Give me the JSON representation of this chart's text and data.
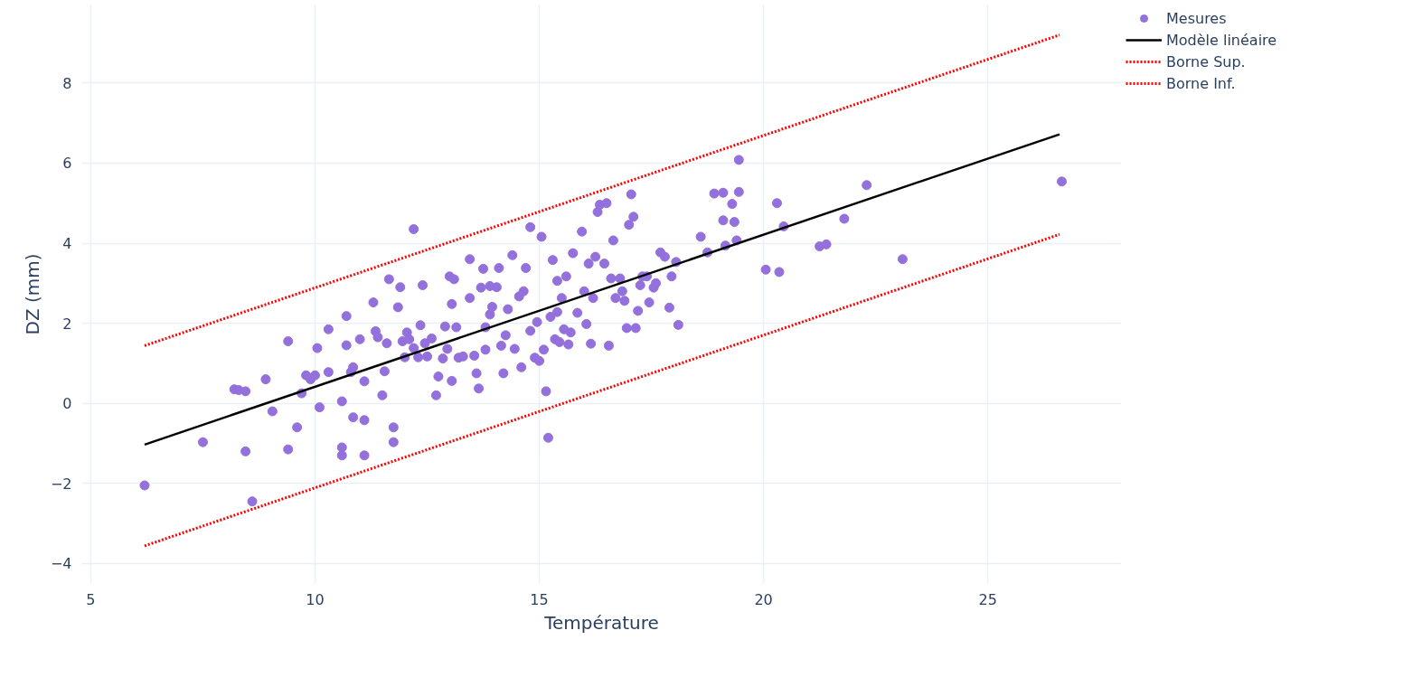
{
  "chart_data": {
    "type": "scatter",
    "xlabel": "Température",
    "ylabel": "DZ (mm)",
    "xlim": [
      4.8,
      27.98
    ],
    "ylim": [
      -4.5,
      9.95
    ],
    "xticks": [
      5,
      10,
      15,
      20,
      25
    ],
    "yticks": [
      {
        "value": -4,
        "label": "−4"
      },
      {
        "value": -2,
        "label": "−2"
      },
      0,
      2,
      4,
      6,
      8
    ],
    "grid": true,
    "legend": "top right",
    "series": [
      {
        "name": "Mesures",
        "marker": "circle",
        "color": "#9370db",
        "x": [
          6.2,
          7.5,
          8.2,
          8.3,
          8.45,
          8.45,
          8.6,
          9.05,
          8.9,
          9.4,
          9.4,
          9.6,
          9.7,
          9.8,
          9.9,
          10.0,
          10.05,
          10.1,
          10.3,
          10.3,
          10.6,
          10.6,
          10.6,
          10.7,
          10.7,
          10.8,
          10.85,
          10.85,
          11.0,
          11.1,
          11.1,
          11.1,
          11.3,
          11.35,
          11.4,
          11.5,
          11.55,
          11.6,
          11.65,
          11.75,
          11.75,
          11.85,
          11.9,
          11.95,
          12.0,
          12.05,
          12.1,
          12.2,
          12.2,
          12.3,
          12.35,
          12.4,
          12.45,
          12.5,
          12.6,
          12.7,
          12.75,
          12.85,
          12.9,
          12.95,
          13.0,
          13.05,
          13.05,
          13.1,
          13.15,
          13.2,
          13.3,
          13.45,
          13.45,
          13.55,
          13.6,
          13.65,
          13.7,
          13.75,
          13.8,
          13.8,
          13.9,
          13.9,
          13.95,
          14.05,
          14.1,
          14.15,
          14.2,
          14.25,
          14.3,
          14.4,
          14.45,
          14.55,
          14.6,
          14.65,
          14.7,
          14.8,
          14.8,
          14.9,
          14.95,
          15.0,
          15.05,
          15.1,
          15.15,
          15.2,
          15.25,
          15.3,
          15.35,
          15.4,
          15.4,
          15.45,
          15.5,
          15.55,
          15.6,
          15.65,
          15.7,
          15.75,
          15.85,
          15.95,
          16.0,
          16.05,
          16.1,
          16.15,
          16.2,
          16.25,
          16.3,
          16.35,
          16.45,
          16.5,
          16.55,
          16.6,
          16.65,
          16.7,
          16.8,
          16.85,
          16.9,
          16.95,
          17.0,
          17.05,
          17.1,
          17.15,
          17.2,
          17.25,
          17.3,
          17.4,
          17.45,
          17.55,
          17.6,
          17.7,
          17.8,
          17.9,
          17.95,
          18.05,
          18.1,
          18.6,
          18.75,
          18.9,
          19.1,
          19.1,
          19.15,
          19.3,
          19.35,
          19.4,
          19.45,
          19.45,
          20.05,
          20.3,
          20.35,
          20.45,
          21.25,
          21.4,
          21.8,
          22.3,
          23.1,
          26.65
        ],
        "values": [
          -2.05,
          -0.97,
          0.35,
          0.33,
          0.3,
          -1.2,
          -2.45,
          -0.2,
          0.6,
          1.55,
          -1.15,
          -0.6,
          0.25,
          0.7,
          0.6,
          0.7,
          1.38,
          -0.1,
          0.78,
          1.85,
          -1.1,
          -1.3,
          0.05,
          2.18,
          1.45,
          0.78,
          0.9,
          -0.35,
          1.6,
          -0.42,
          -1.3,
          0.55,
          2.52,
          1.8,
          1.65,
          0.2,
          0.8,
          1.5,
          3.1,
          -0.6,
          -0.97,
          2.4,
          2.9,
          1.55,
          1.15,
          1.77,
          1.6,
          4.35,
          1.38,
          1.15,
          1.95,
          2.95,
          1.5,
          1.17,
          1.62,
          0.2,
          0.67,
          1.12,
          1.92,
          1.36,
          3.17,
          2.48,
          0.56,
          3.1,
          1.9,
          1.14,
          1.17,
          3.6,
          2.63,
          1.19,
          0.75,
          0.37,
          2.89,
          3.36,
          1.34,
          1.9,
          2.93,
          2.22,
          2.41,
          2.9,
          3.38,
          1.44,
          0.75,
          1.7,
          2.35,
          3.7,
          1.36,
          2.67,
          0.9,
          2.8,
          3.38,
          4.4,
          1.81,
          1.14,
          2.03,
          1.06,
          4.16,
          1.34,
          0.3,
          -0.86,
          2.16,
          3.58,
          1.6,
          3.06,
          2.28,
          1.53,
          2.63,
          1.85,
          3.17,
          1.47,
          1.77,
          3.75,
          2.26,
          4.29,
          2.8,
          1.98,
          3.49,
          1.49,
          2.63,
          3.66,
          4.78,
          4.96,
          3.49,
          5.0,
          1.44,
          3.12,
          4.07,
          2.63,
          3.12,
          2.8,
          2.56,
          1.88,
          4.46,
          5.22,
          4.66,
          1.88,
          2.31,
          2.95,
          3.17,
          3.17,
          2.52,
          2.89,
          3.0,
          3.77,
          3.66,
          2.39,
          3.17,
          3.53,
          1.96,
          4.16,
          3.77,
          5.24,
          5.26,
          4.57,
          3.94,
          4.98,
          4.53,
          4.07,
          6.08,
          5.28,
          3.34,
          5.0,
          3.28,
          4.42,
          3.92,
          3.97,
          4.61,
          5.45,
          3.6,
          5.54
        ]
      },
      {
        "name": "Modèle linéaire",
        "type": "line",
        "color": "#000000",
        "line_style": "solid",
        "marker": "none",
        "x": [
          6.2,
          26.6
        ],
        "values": [
          -1.03,
          6.72
        ]
      },
      {
        "name": "Borne Sup.",
        "type": "line",
        "color": "#ff0000",
        "line_style": "dotted",
        "marker": "none",
        "x": [
          6.2,
          26.6
        ],
        "values": [
          1.44,
          9.2
        ]
      },
      {
        "name": "Borne Inf.",
        "type": "line",
        "color": "#ff0000",
        "line_style": "dotted",
        "marker": "none",
        "x": [
          6.2,
          26.6
        ],
        "values": [
          -3.56,
          4.22
        ]
      }
    ]
  }
}
